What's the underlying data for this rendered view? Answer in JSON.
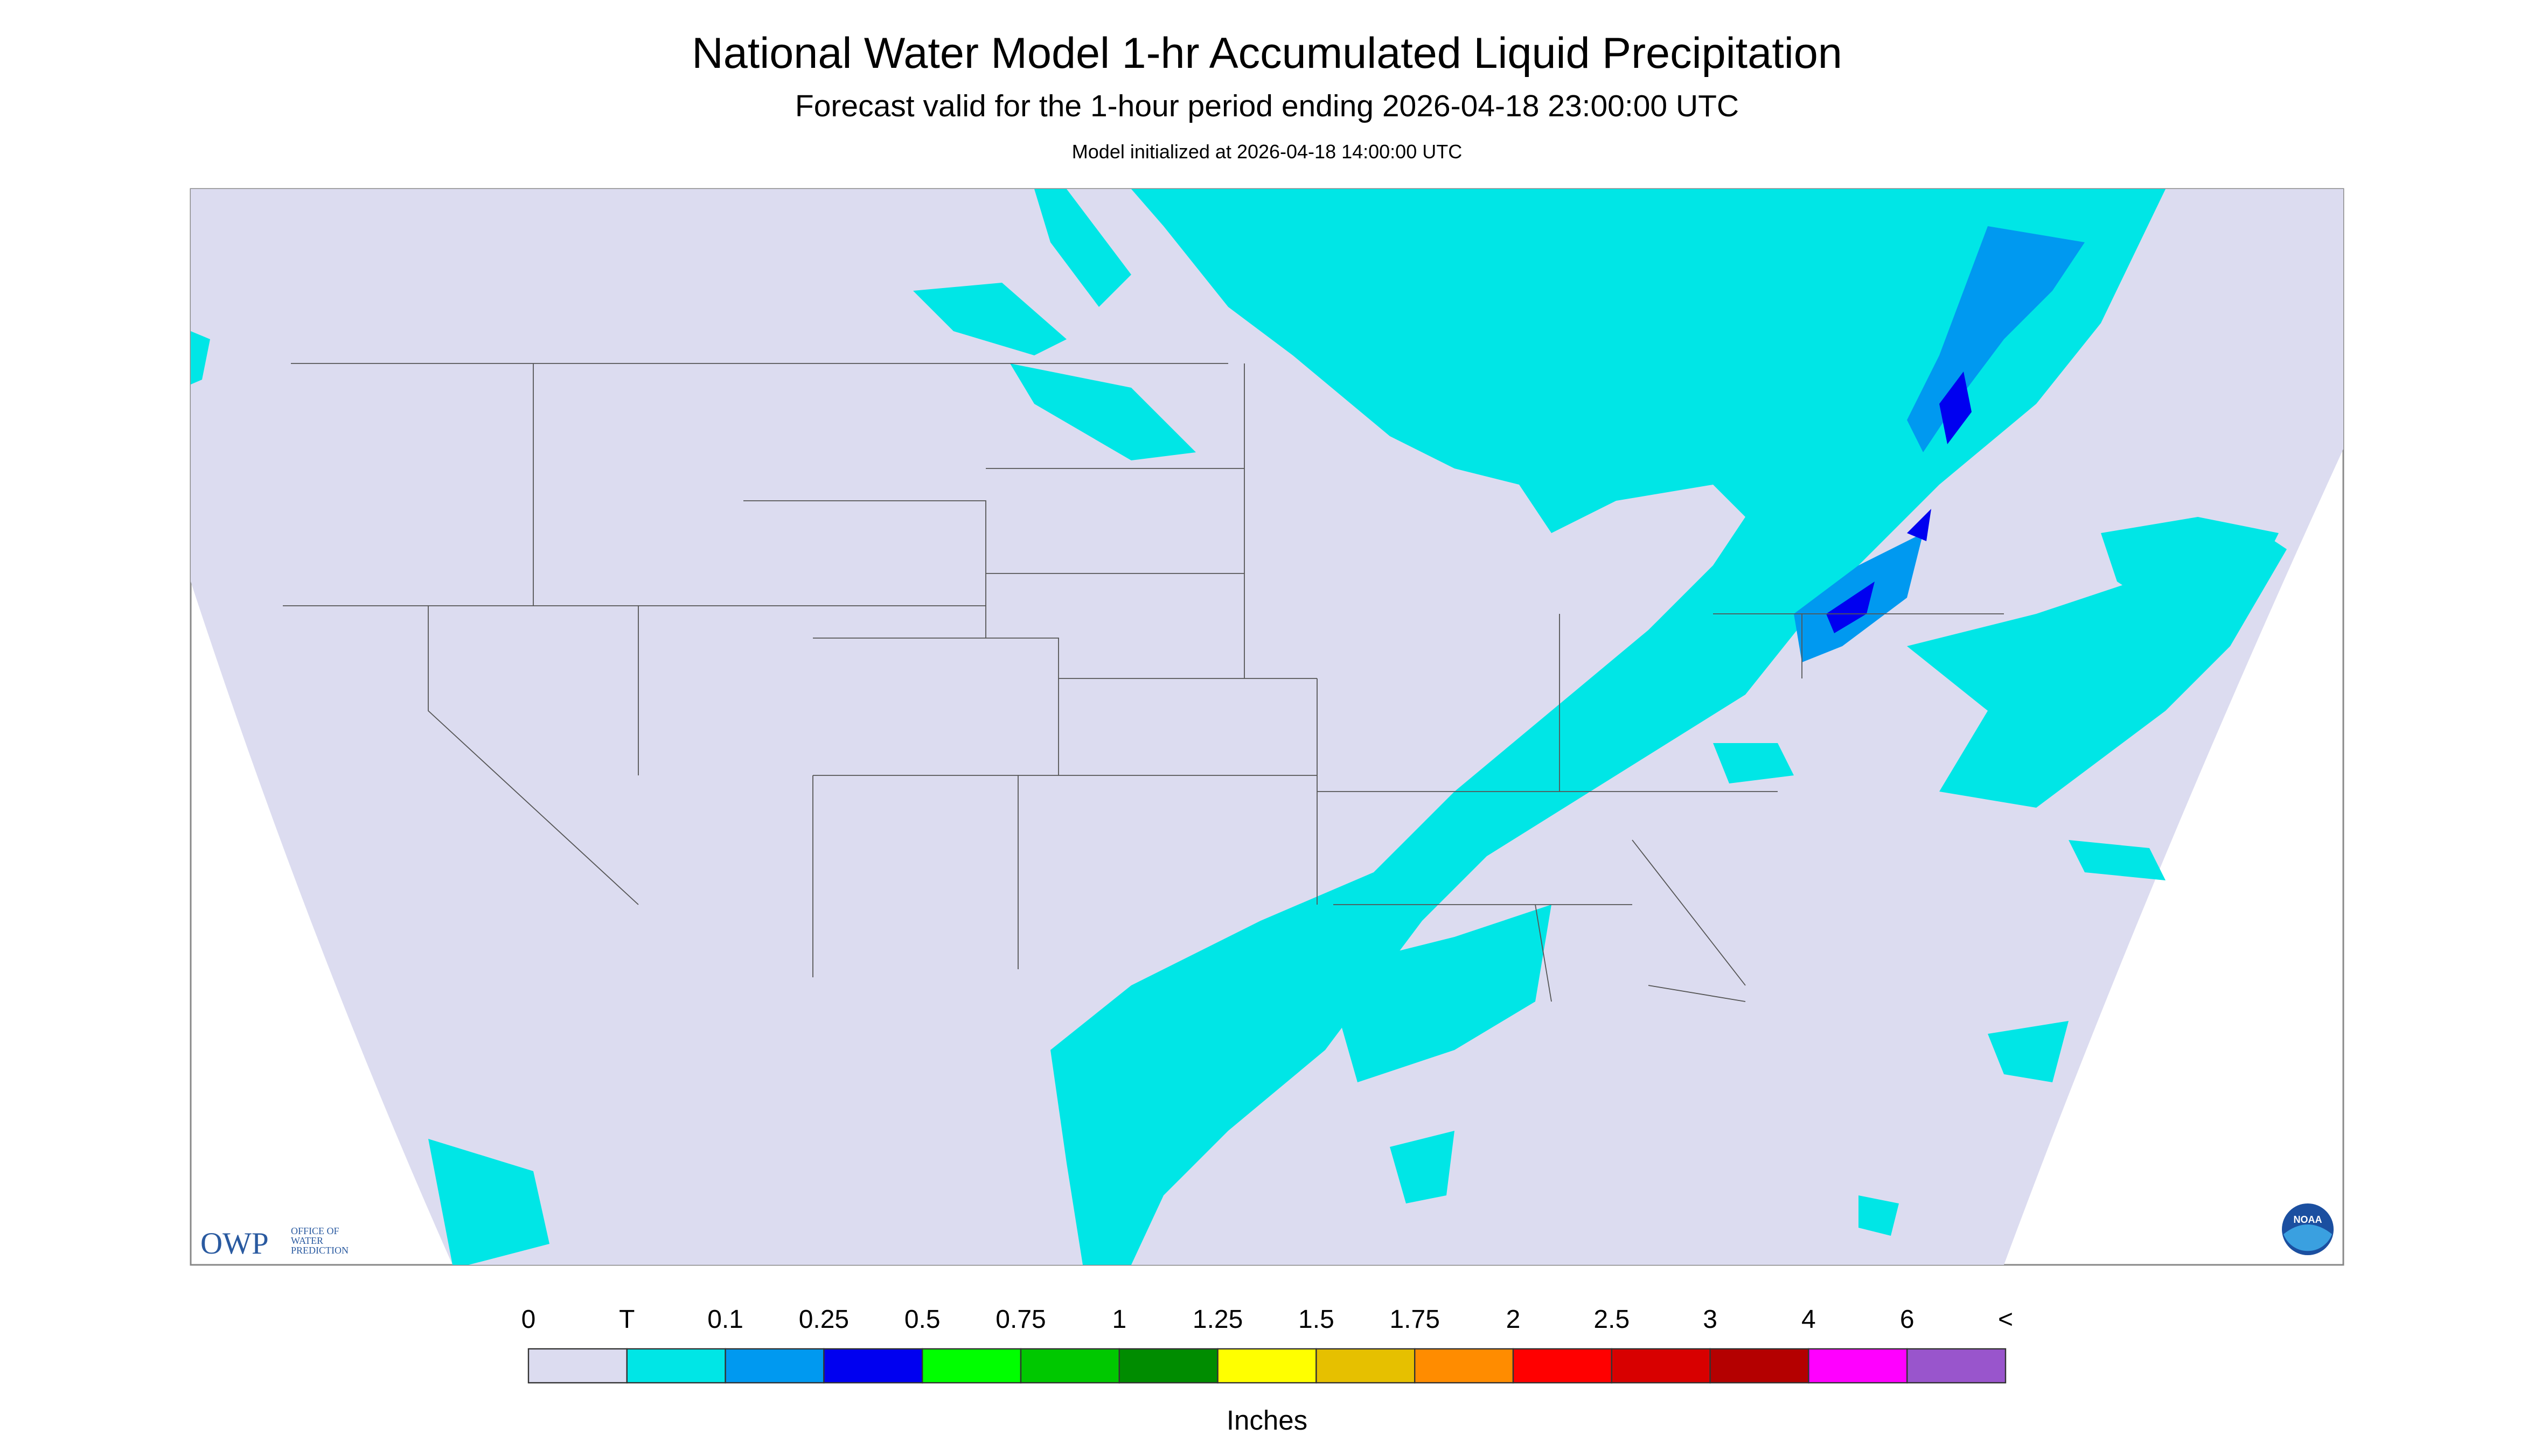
{
  "header": {
    "title": "National Water Model 1-hr Accumulated Liquid Precipitation",
    "subtitle": "Forecast valid for the 1-hour period ending 2026-04-18 23:00:00 UTC",
    "note": "Model initialized at 2026-04-18 14:00:00 UTC"
  },
  "logos": {
    "owp": "OWP",
    "owp_text": [
      "OFFICE OF",
      "WATER",
      "PREDICTION"
    ],
    "noaa": "NOAA"
  },
  "legend": {
    "labels": [
      "0",
      "T",
      "0.1",
      "0.25",
      "0.5",
      "0.75",
      "1",
      "1.25",
      "1.5",
      "1.75",
      "2",
      "2.5",
      "3",
      "4",
      "6",
      "<"
    ],
    "colors": [
      "#dcdcf0",
      "#00e6e6",
      "#0099f0",
      "#0000f0",
      "#00ff00",
      "#00c800",
      "#008c00",
      "#ffff00",
      "#e6c000",
      "#ff8c00",
      "#ff0000",
      "#d80000",
      "#b40000",
      "#ff00ff",
      "#9955cc"
    ],
    "units": "Inches"
  }
}
